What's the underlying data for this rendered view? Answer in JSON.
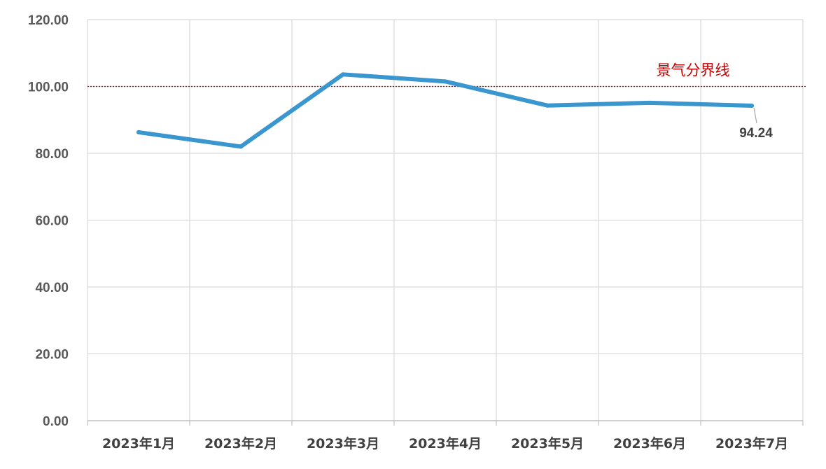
{
  "chart_data": {
    "type": "line",
    "categories": [
      "2023年1月",
      "2023年2月",
      "2023年3月",
      "2023年4月",
      "2023年5月",
      "2023年6月",
      "2023年7月"
    ],
    "series": [
      {
        "values": [
          86.3,
          82.0,
          103.6,
          101.5,
          94.3,
          95.1,
          94.24
        ]
      }
    ],
    "ylim": [
      0,
      120
    ],
    "yticks": [
      "0.00",
      "20.00",
      "40.00",
      "60.00",
      "80.00",
      "100.00",
      "120.00"
    ],
    "grid": true,
    "reference_line": {
      "value": 100,
      "label": "景气分界线",
      "color": "#c00000",
      "style": "dotted"
    },
    "data_labels": [
      {
        "index": 6,
        "text": "94.24"
      }
    ],
    "colors": {
      "series": "#3a96cf",
      "grid": "#d9d9d9",
      "axis": "#bfbfbf"
    }
  }
}
